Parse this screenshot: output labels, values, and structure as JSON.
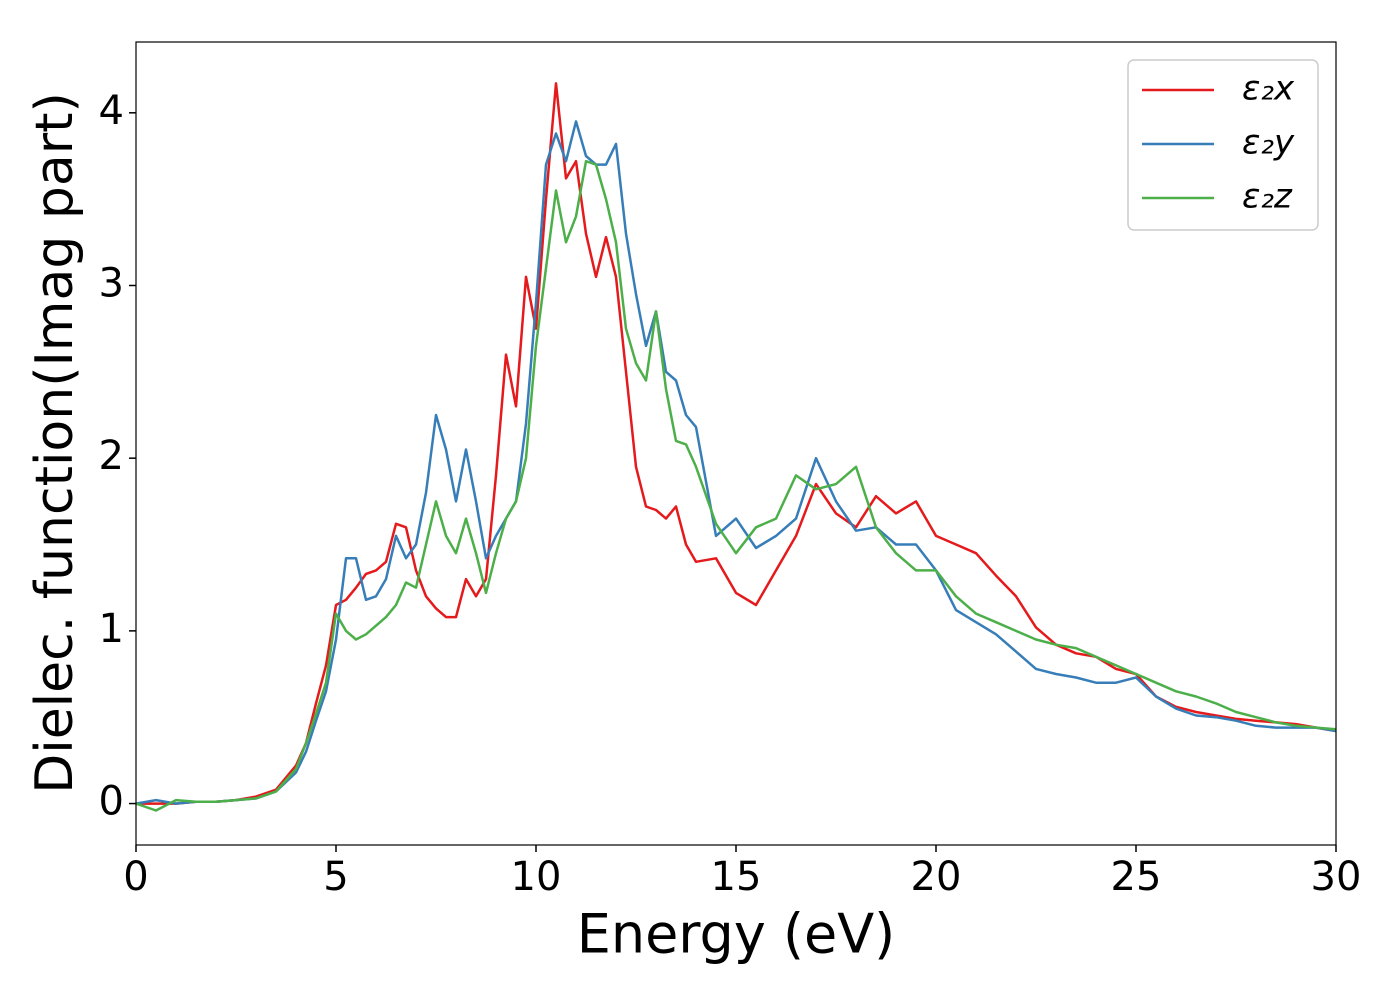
{
  "chart_data": {
    "type": "line",
    "xlabel": "Energy (eV)",
    "ylabel": "Dielec. function(Imag part)",
    "x": [
      0,
      0.5,
      1,
      1.5,
      2,
      2.5,
      3,
      3.5,
      4,
      4.25,
      4.5,
      4.75,
      5,
      5.25,
      5.5,
      5.75,
      6,
      6.25,
      6.5,
      6.75,
      7,
      7.25,
      7.5,
      7.75,
      8,
      8.25,
      8.5,
      8.75,
      9,
      9.25,
      9.5,
      9.75,
      10,
      10.25,
      10.5,
      10.75,
      11,
      11.25,
      11.5,
      11.75,
      12,
      12.25,
      12.5,
      12.75,
      13,
      13.25,
      13.5,
      13.75,
      14,
      14.5,
      15,
      15.5,
      16,
      16.5,
      17,
      17.5,
      18,
      18.5,
      19,
      19.5,
      20,
      20.5,
      21,
      21.5,
      22,
      22.5,
      23,
      23.5,
      24,
      24.5,
      25,
      25.5,
      26,
      26.5,
      27,
      27.5,
      28,
      28.5,
      29,
      29.5,
      30
    ],
    "series": [
      {
        "name": "ε₂x",
        "color": "#e41a1c",
        "values": [
          0,
          0,
          0,
          0.01,
          0.01,
          0.02,
          0.04,
          0.08,
          0.22,
          0.35,
          0.58,
          0.8,
          1.15,
          1.18,
          1.25,
          1.33,
          1.35,
          1.4,
          1.62,
          1.6,
          1.35,
          1.2,
          1.13,
          1.08,
          1.08,
          1.3,
          1.2,
          1.3,
          1.9,
          2.6,
          2.3,
          3.05,
          2.75,
          3.5,
          4.17,
          3.62,
          3.72,
          3.3,
          3.05,
          3.28,
          3.05,
          2.5,
          1.95,
          1.72,
          1.7,
          1.65,
          1.72,
          1.5,
          1.4,
          1.42,
          1.22,
          1.15,
          1.35,
          1.55,
          1.85,
          1.68,
          1.6,
          1.78,
          1.68,
          1.75,
          1.55,
          1.5,
          1.45,
          1.32,
          1.2,
          1.02,
          0.92,
          0.87,
          0.85,
          0.78,
          0.75,
          0.62,
          0.56,
          0.53,
          0.51,
          0.49,
          0.48,
          0.47,
          0.46,
          0.44,
          0.42
        ]
      },
      {
        "name": "ε₂y",
        "color": "#377eb8",
        "values": [
          0,
          0.02,
          0,
          0.01,
          0.01,
          0.02,
          0.03,
          0.07,
          0.18,
          0.3,
          0.48,
          0.65,
          0.95,
          1.42,
          1.42,
          1.18,
          1.2,
          1.3,
          1.55,
          1.42,
          1.5,
          1.8,
          2.25,
          2.05,
          1.75,
          2.05,
          1.75,
          1.42,
          1.55,
          1.65,
          1.75,
          2.2,
          2.9,
          3.7,
          3.88,
          3.72,
          3.95,
          3.75,
          3.7,
          3.7,
          3.82,
          3.3,
          2.95,
          2.65,
          2.85,
          2.5,
          2.45,
          2.25,
          2.18,
          1.55,
          1.65,
          1.48,
          1.55,
          1.65,
          2.0,
          1.75,
          1.58,
          1.6,
          1.5,
          1.5,
          1.35,
          1.12,
          1.05,
          0.98,
          0.88,
          0.78,
          0.75,
          0.73,
          0.7,
          0.7,
          0.73,
          0.62,
          0.55,
          0.51,
          0.5,
          0.48,
          0.45,
          0.44,
          0.44,
          0.44,
          0.42
        ]
      },
      {
        "name": "ε₂z",
        "color": "#4daf4a",
        "values": [
          0,
          -0.04,
          0.02,
          0.01,
          0.01,
          0.02,
          0.03,
          0.07,
          0.2,
          0.35,
          0.52,
          0.7,
          1.1,
          1.0,
          0.95,
          0.98,
          1.03,
          1.08,
          1.15,
          1.28,
          1.25,
          1.5,
          1.75,
          1.55,
          1.45,
          1.65,
          1.45,
          1.22,
          1.45,
          1.65,
          1.75,
          2.0,
          2.65,
          3.1,
          3.55,
          3.25,
          3.4,
          3.72,
          3.7,
          3.5,
          3.25,
          2.75,
          2.55,
          2.45,
          2.85,
          2.4,
          2.1,
          2.08,
          1.95,
          1.62,
          1.45,
          1.6,
          1.65,
          1.9,
          1.82,
          1.85,
          1.95,
          1.6,
          1.45,
          1.35,
          1.35,
          1.2,
          1.1,
          1.05,
          1.0,
          0.95,
          0.92,
          0.9,
          0.85,
          0.8,
          0.75,
          0.7,
          0.65,
          0.62,
          0.58,
          0.53,
          0.5,
          0.47,
          0.45,
          0.44,
          0.43
        ]
      }
    ],
    "xlim": [
      0,
      30
    ],
    "xticks": [
      0,
      5,
      10,
      15,
      20,
      25,
      30
    ],
    "ylim": [
      -0.24,
      4.41
    ],
    "yticks": [
      0,
      1,
      2,
      3,
      4
    ],
    "legend": "upper right",
    "grid": false
  }
}
